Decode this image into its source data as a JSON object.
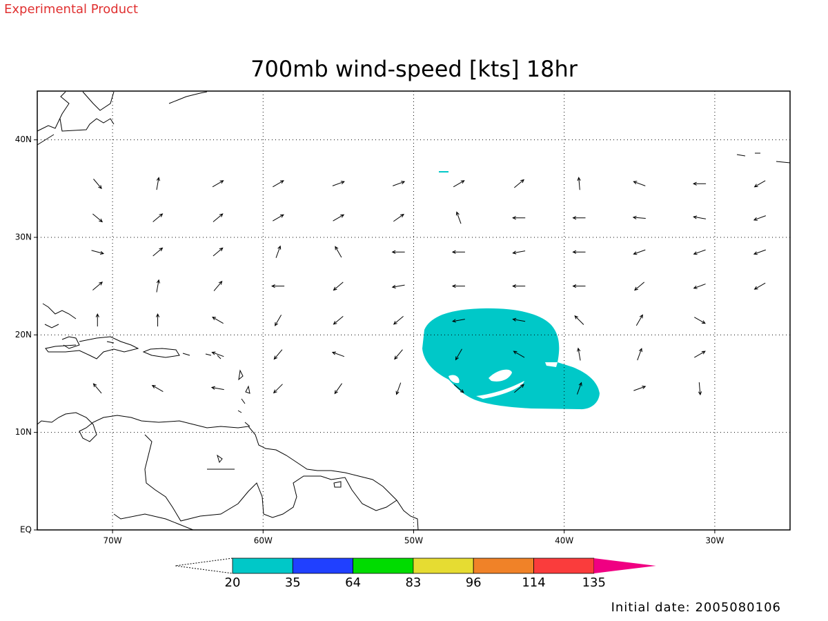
{
  "header": {
    "product": "Experimental Product",
    "title": "700mb wind-speed [kts] 18hr",
    "initial_date": "Initial date: 2005080106"
  },
  "map": {
    "xlim": [
      -75,
      -25
    ],
    "ylim": [
      0,
      45
    ],
    "xticks": [
      {
        "value": -70,
        "label": "70W"
      },
      {
        "value": -60,
        "label": "60W"
      },
      {
        "value": -50,
        "label": "50W"
      },
      {
        "value": -40,
        "label": "40W"
      },
      {
        "value": -30,
        "label": "30W"
      }
    ],
    "yticks": [
      {
        "value": 0,
        "label": "EQ"
      },
      {
        "value": 10,
        "label": "10N"
      },
      {
        "value": 20,
        "label": "20N"
      },
      {
        "value": 30,
        "label": "30N"
      },
      {
        "value": 40,
        "label": "40N"
      }
    ],
    "grid": true,
    "wind": {
      "lons": [
        -71,
        -67,
        -63,
        -59,
        -55,
        -51,
        -47,
        -43,
        -39,
        -35,
        -31,
        -27
      ],
      "lats": [
        35.5,
        32,
        28.5,
        25,
        21.5,
        18,
        14.5
      ],
      "direction_deg": [
        [
          -50,
          80,
          30,
          30,
          20,
          20,
          30,
          40,
          95,
          160,
          180,
          210
        ],
        [
          -40,
          40,
          40,
          30,
          30,
          35,
          110,
          180,
          180,
          175,
          170,
          200
        ],
        [
          -15,
          40,
          40,
          70,
          120,
          180,
          180,
          190,
          180,
          200,
          200,
          200
        ],
        [
          40,
          80,
          50,
          180,
          220,
          190,
          180,
          180,
          180,
          220,
          200,
          210
        ],
        [
          90,
          90,
          150,
          240,
          220,
          220,
          190,
          170,
          135,
          60,
          -30,
          null
        ],
        [
          null,
          null,
          160,
          230,
          160,
          230,
          240,
          150,
          100,
          70,
          30,
          null
        ],
        [
          130,
          150,
          170,
          225,
          235,
          250,
          -40,
          40,
          70,
          20,
          -85,
          null
        ]
      ]
    }
  },
  "colorbar": {
    "levels": [
      20,
      35,
      64,
      83,
      96,
      114,
      135
    ],
    "colors": [
      "#00c8c8",
      "#2040ff",
      "#00dc00",
      "#e6dc32",
      "#f08228",
      "#fa3c3c",
      "#f00082"
    ]
  }
}
